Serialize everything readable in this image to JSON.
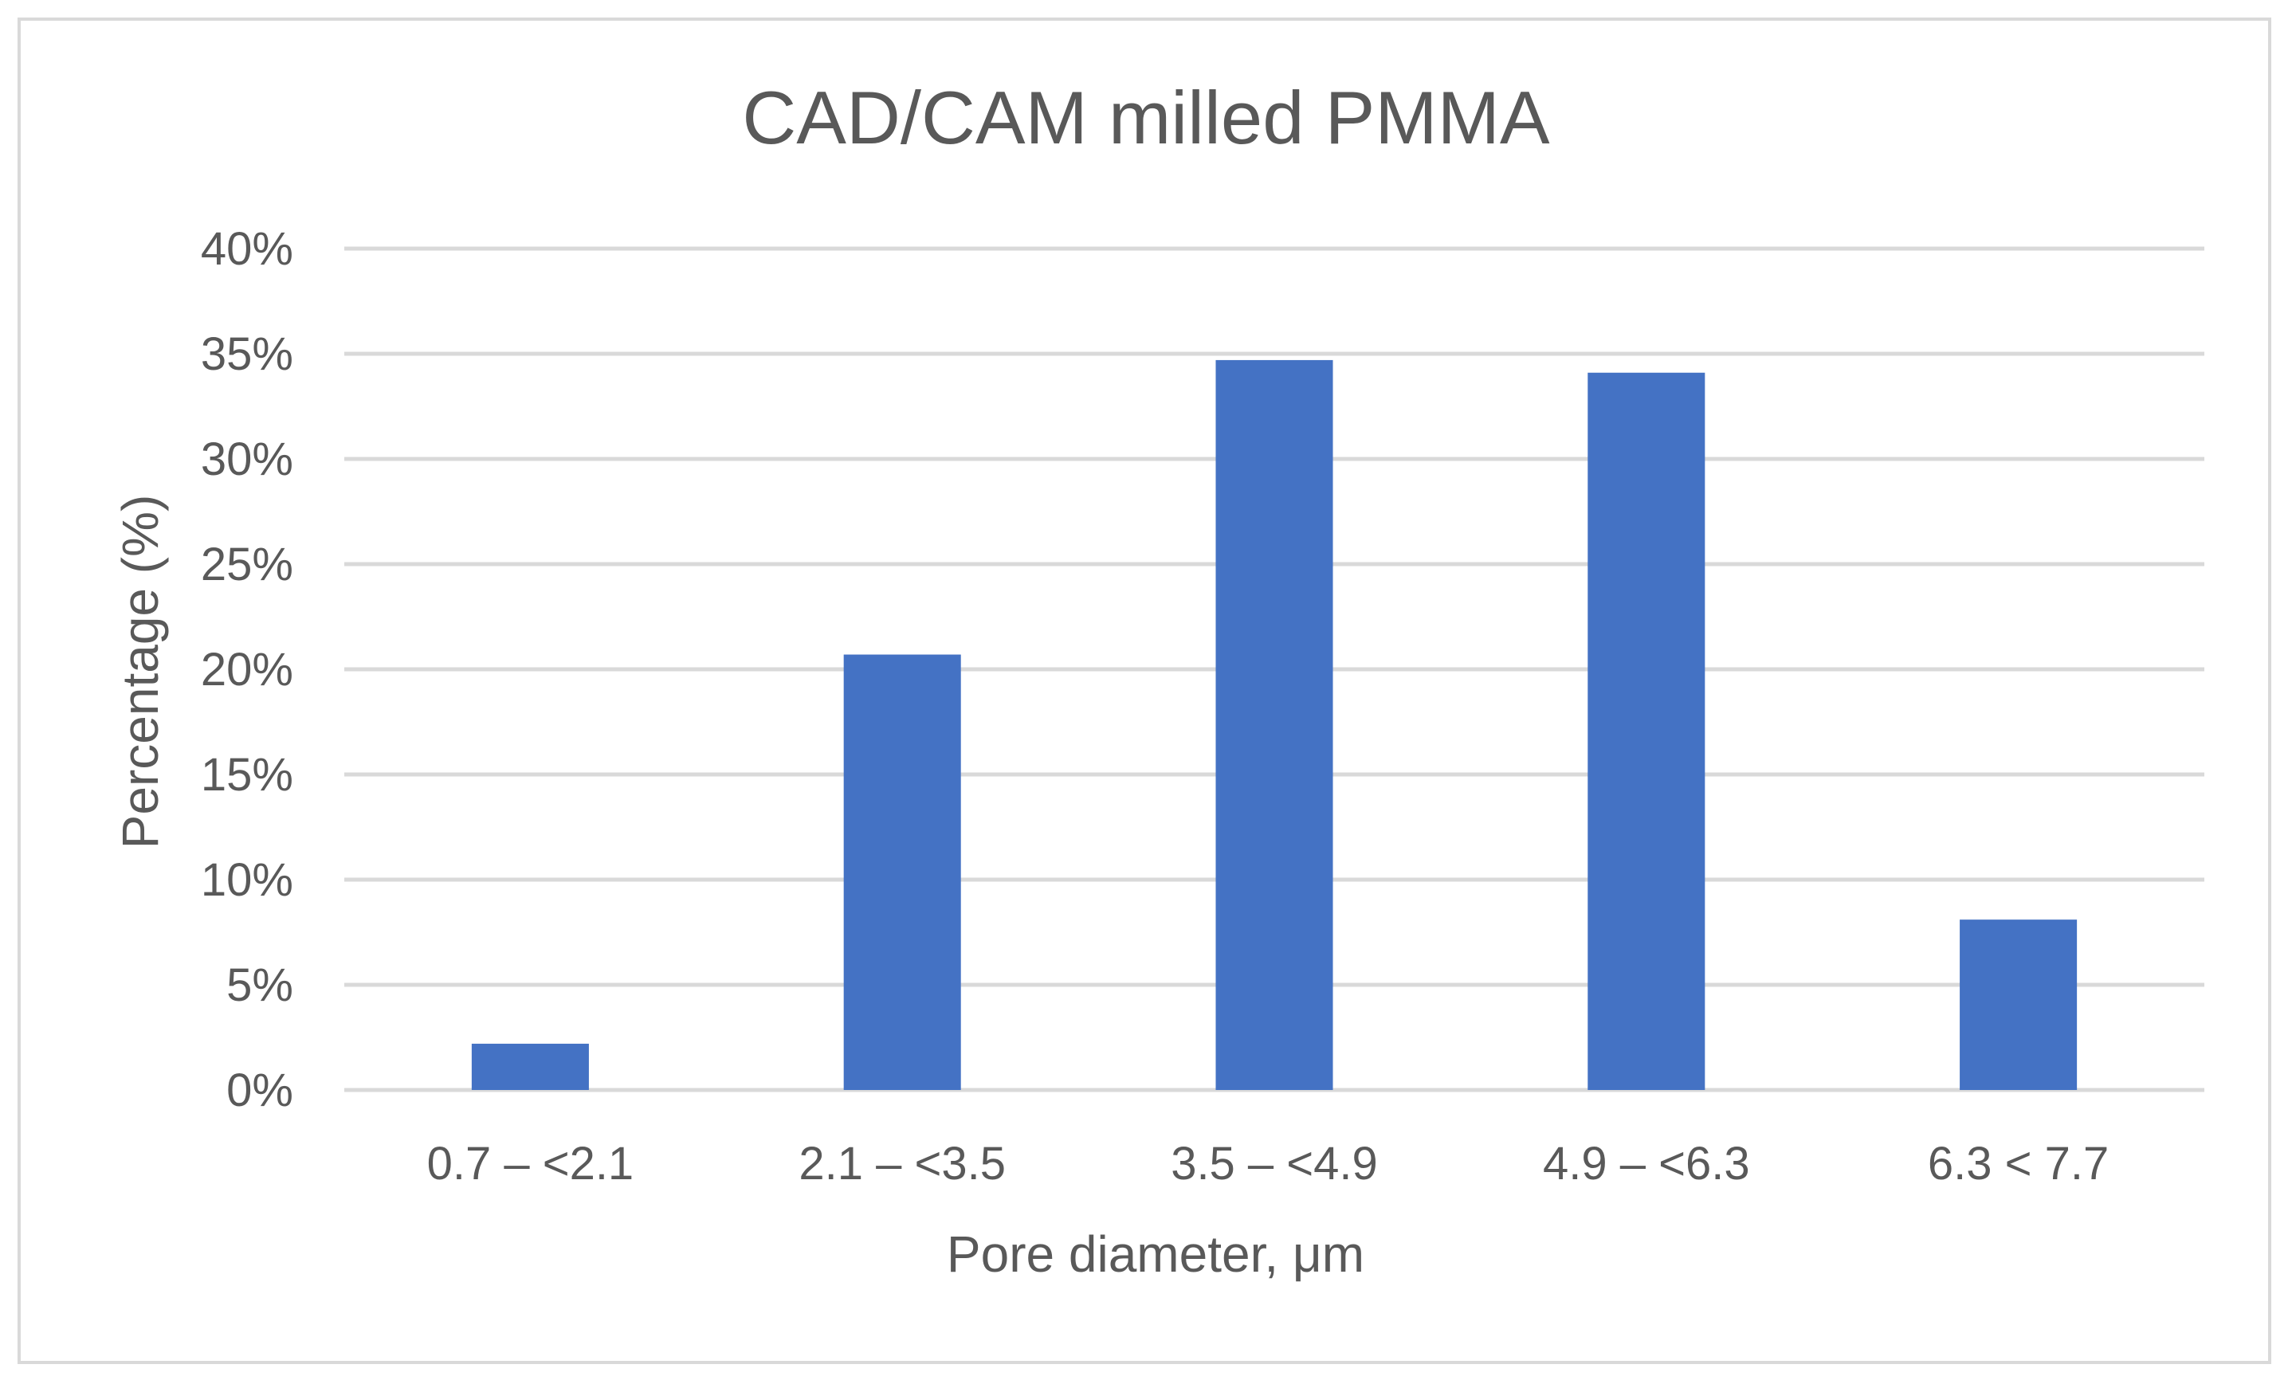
{
  "chart_data": {
    "type": "bar",
    "title": "CAD/CAM milled PMMA",
    "xlabel": "Pore diameter, μm",
    "ylabel": "Percentage (%)",
    "categories": [
      "0.7 – <2.1",
      "2.1 – <3.5",
      "3.5 – <4.9",
      "4.9 – <6.3",
      "6.3 < 7.7"
    ],
    "values": [
      2.2,
      20.7,
      34.7,
      34.1,
      8.1
    ],
    "ylim": [
      0,
      40
    ],
    "yticks": [
      0,
      5,
      10,
      15,
      20,
      25,
      30,
      35,
      40
    ],
    "ytick_labels": [
      "0%",
      "5%",
      "10%",
      "15%",
      "20%",
      "25%",
      "30%",
      "35%",
      "40%"
    ],
    "grid": true,
    "legend": "none",
    "bar_color": "#4472c4",
    "grid_color": "#d9d9d9",
    "text_color": "#595959"
  }
}
